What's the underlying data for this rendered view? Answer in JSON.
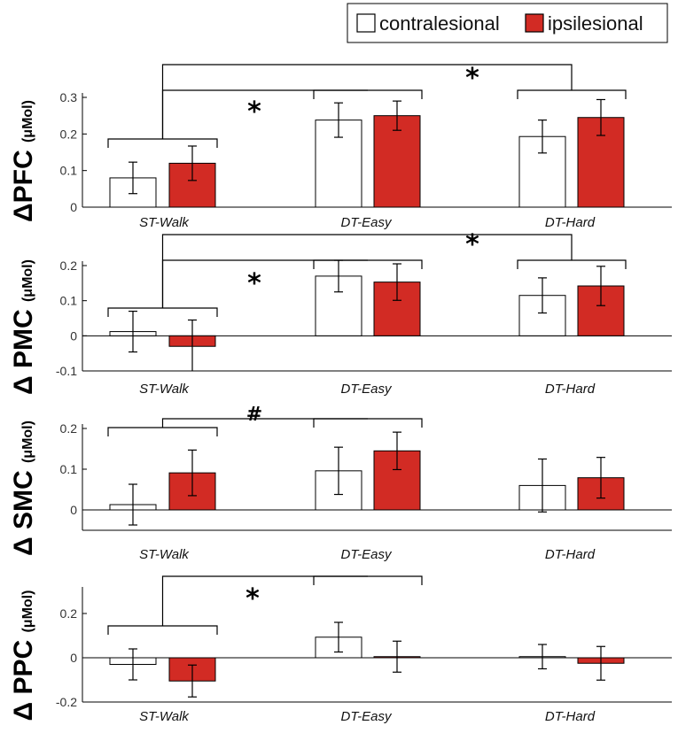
{
  "legend": {
    "items": [
      {
        "label": "contralesional",
        "fill": "#ffffff"
      },
      {
        "label": "ipsilesional",
        "fill": "#d22b24"
      }
    ]
  },
  "colors": {
    "axis": "#000000",
    "bar_edge": "#000000",
    "ipsi": "#d22b24",
    "contra": "#ffffff"
  },
  "chart_data": [
    {
      "type": "bar",
      "ylabel_main": "ΔPFC",
      "ylabel_unit": "(μMol)",
      "categories": [
        "ST-Walk",
        "DT-Easy",
        "DT-Hard"
      ],
      "ylim": [
        0,
        0.3
      ],
      "yticks": [
        0,
        0.1,
        0.2,
        0.3
      ],
      "ytick_labels": [
        "0",
        "0.1",
        "0.2",
        "0.3"
      ],
      "series": [
        {
          "name": "contralesional",
          "values": [
            0.08,
            0.238,
            0.193
          ],
          "errors": [
            0.043,
            0.047,
            0.045
          ]
        },
        {
          "name": "ipsilesional",
          "values": [
            0.12,
            0.25,
            0.245
          ],
          "errors": [
            0.047,
            0.04,
            0.049
          ]
        }
      ],
      "brackets": [
        {
          "from": 0,
          "to": 1,
          "symbol": "*"
        },
        {
          "from": 0,
          "to": 2,
          "symbol": "*"
        }
      ]
    },
    {
      "type": "bar",
      "ylabel_main": "Δ PMC",
      "ylabel_unit": "(μMol)",
      "categories": [
        "ST-Walk",
        "DT-Easy",
        "DT-Hard"
      ],
      "ylim": [
        -0.1,
        0.2
      ],
      "yticks": [
        -0.1,
        0,
        0.1,
        0.2
      ],
      "ytick_labels": [
        "-0.1",
        "0",
        "0.1",
        "0.2"
      ],
      "series": [
        {
          "name": "contralesional",
          "values": [
            0.012,
            0.17,
            0.115
          ],
          "errors": [
            0.058,
            0.045,
            0.05
          ]
        },
        {
          "name": "ipsilesional",
          "values": [
            -0.03,
            0.153,
            0.142
          ],
          "errors": [
            0.075,
            0.052,
            0.056
          ]
        }
      ],
      "brackets": [
        {
          "from": 0,
          "to": 1,
          "symbol": "*"
        },
        {
          "from": 0,
          "to": 2,
          "symbol": "*"
        }
      ]
    },
    {
      "type": "bar",
      "ylabel_main": "Δ SMC",
      "ylabel_unit": "(μMol)",
      "categories": [
        "ST-Walk",
        "DT-Easy",
        "DT-Hard"
      ],
      "ylim": [
        -0.05,
        0.2
      ],
      "yticks": [
        0,
        0.1,
        0.2
      ],
      "ytick_labels": [
        "0",
        "0.1",
        "0.2"
      ],
      "series": [
        {
          "name": "contralesional",
          "values": [
            0.013,
            0.096,
            0.06
          ],
          "errors": [
            0.05,
            0.058,
            0.065
          ]
        },
        {
          "name": "ipsilesional",
          "values": [
            0.091,
            0.145,
            0.079
          ],
          "errors": [
            0.056,
            0.046,
            0.05
          ]
        }
      ],
      "brackets": [
        {
          "from": 0,
          "to": 1,
          "symbol": "#"
        }
      ]
    },
    {
      "type": "bar",
      "ylabel_main": "Δ PPC",
      "ylabel_unit": "(μMol)",
      "categories": [
        "ST-Walk",
        "DT-Easy",
        "DT-Hard"
      ],
      "ylim": [
        -0.2,
        0.3
      ],
      "yticks": [
        -0.2,
        0,
        0.2
      ],
      "ytick_labels": [
        "-0.2",
        "0",
        "0.2"
      ],
      "series": [
        {
          "name": "contralesional",
          "values": [
            -0.03,
            0.093,
            0.005
          ],
          "errors": [
            0.07,
            0.067,
            0.055
          ]
        },
        {
          "name": "ipsilesional",
          "values": [
            -0.105,
            0.005,
            -0.025
          ],
          "errors": [
            0.072,
            0.07,
            0.076
          ]
        }
      ],
      "brackets": [
        {
          "from": 0,
          "to": 1,
          "symbol": "*"
        }
      ]
    }
  ]
}
